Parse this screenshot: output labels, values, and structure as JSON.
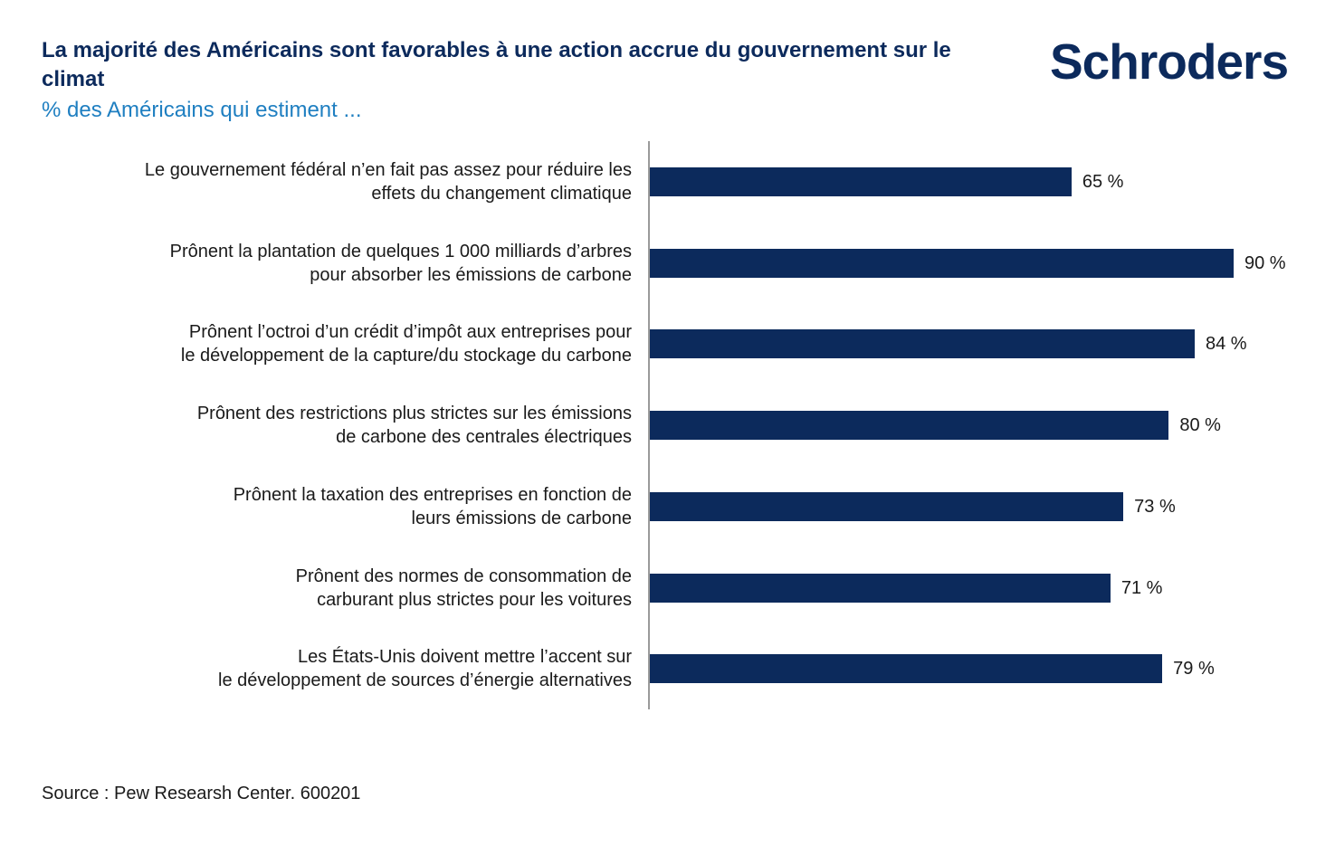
{
  "header": {
    "title": "La majorité des Américains sont favorables à une action accrue du gouvernement sur le climat",
    "subtitle": "% des Américains qui estiment ...",
    "logo": "Schroders"
  },
  "footer": {
    "source": "Source : Pew Researsh Center. 600201"
  },
  "colors": {
    "bar": "#0c2a5c",
    "title": "#0c2a5c",
    "subtitle": "#1f7fc1"
  },
  "chart_data": {
    "type": "bar",
    "orientation": "horizontal",
    "title": "La majorité des Américains sont favorables à une action accrue du gouvernement sur le climat",
    "subtitle": "% des Américains qui estiment ...",
    "xlim": [
      0,
      100
    ],
    "grid": false,
    "categories": [
      [
        "Le gouvernement fédéral n’en fait pas assez pour réduire les",
        "effets du changement climatique"
      ],
      [
        "Prônent la plantation de quelques 1 000 milliards d’arbres",
        "pour absorber les émissions de carbone"
      ],
      [
        "Prônent l’octroi d’un crédit d’impôt aux entreprises pour",
        "le développement de la capture/du stockage du carbone"
      ],
      [
        "Prônent des restrictions plus strictes sur les émissions",
        "de carbone des centrales électriques"
      ],
      [
        "Prônent la taxation des entreprises en fonction de",
        "leurs émissions de carbone"
      ],
      [
        "Prônent des normes de consommation de",
        "carburant plus strictes pour les voitures"
      ],
      [
        "Les États-Unis doivent mettre l’accent sur",
        "le développement de sources d’énergie alternatives"
      ]
    ],
    "values": [
      65,
      90,
      84,
      80,
      73,
      71,
      79
    ],
    "value_labels": [
      "65 %",
      "90 %",
      "84 %",
      "80 %",
      "73 %",
      "71 %",
      "79 %"
    ]
  }
}
